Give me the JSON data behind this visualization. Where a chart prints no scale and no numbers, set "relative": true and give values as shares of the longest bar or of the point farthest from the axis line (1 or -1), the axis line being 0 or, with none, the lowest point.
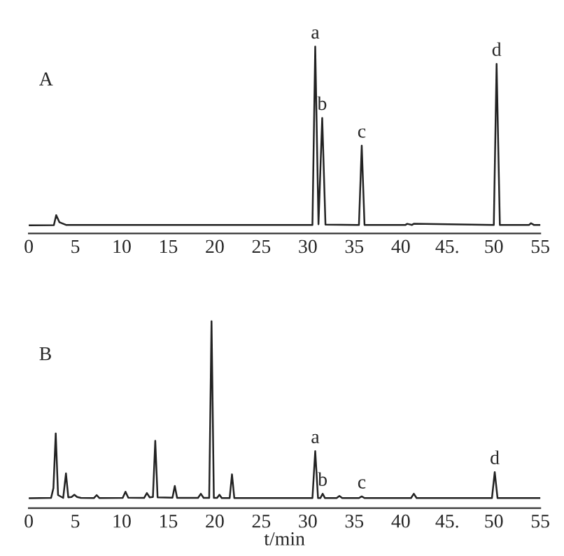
{
  "chart_data": [
    {
      "type": "line",
      "title": "A",
      "relative": true,
      "tick_labels": "x",
      "grid": false,
      "legend": false,
      "marker": "none",
      "line_style": "solid",
      "x": [
        0,
        2.7,
        2.95,
        3.3,
        4,
        30.5,
        30.8,
        31.15,
        31.55,
        31.9,
        35.5,
        35.8,
        36.1,
        40.5,
        40.7,
        41.2,
        41.4,
        50.0,
        50.3,
        50.65,
        53.8,
        54,
        54.3,
        55
      ],
      "series": [
        {
          "color": "#222222",
          "values": [
            0.044,
            0.045,
            0.098,
            0.06,
            0.046,
            0.046,
            1.0,
            0.05,
            0.618,
            0.048,
            0.046,
            0.47,
            0.046,
            0.046,
            0.052,
            0.046,
            0.052,
            0.046,
            0.907,
            0.046,
            0.046,
            0.055,
            0.046,
            0.046
          ]
        }
      ],
      "xlim": [
        0,
        55
      ],
      "xticks": [
        0,
        5,
        10,
        15,
        20,
        25,
        30,
        35,
        40,
        {
          "value": 45,
          "label": "45."
        },
        50,
        55
      ],
      "annotations": [
        {
          "text": "a",
          "x": 30.8,
          "y": 1.0
        },
        {
          "text": "b",
          "x": 31.55,
          "y": 0.618
        },
        {
          "text": "c",
          "x": 35.8,
          "y": 0.47
        },
        {
          "text": "d",
          "x": 50.3,
          "y": 0.907
        }
      ]
    },
    {
      "type": "line",
      "title": "B",
      "relative": true,
      "tick_labels": "x",
      "grid": false,
      "legend": false,
      "marker": "none",
      "line_style": "solid",
      "xlabel": "t/min",
      "x": [
        0,
        2.4,
        2.65,
        2.9,
        3.15,
        3.7,
        4.0,
        4.25,
        4.6,
        4.9,
        5.2,
        5.6,
        7.0,
        7.3,
        7.6,
        10.1,
        10.4,
        10.7,
        12.4,
        12.7,
        13.0,
        13.35,
        13.6,
        13.85,
        15.45,
        15.7,
        15.95,
        18.2,
        18.5,
        18.8,
        19.4,
        19.65,
        19.9,
        20.25,
        20.5,
        20.75,
        21.6,
        21.85,
        22.1,
        30.5,
        30.8,
        31.1,
        31.35,
        31.6,
        31.85,
        33.1,
        33.4,
        33.7,
        35.5,
        35.8,
        36.1,
        41.1,
        41.4,
        41.7,
        49.8,
        50.1,
        50.4,
        55
      ],
      "series": [
        {
          "color": "#222222",
          "values": [
            0.053,
            0.055,
            0.107,
            0.4,
            0.07,
            0.055,
            0.186,
            0.058,
            0.06,
            0.072,
            0.06,
            0.055,
            0.054,
            0.07,
            0.054,
            0.055,
            0.088,
            0.056,
            0.055,
            0.081,
            0.058,
            0.06,
            0.36,
            0.058,
            0.056,
            0.119,
            0.055,
            0.055,
            0.077,
            0.055,
            0.055,
            1.0,
            0.055,
            0.055,
            0.072,
            0.054,
            0.054,
            0.181,
            0.054,
            0.054,
            0.305,
            0.054,
            0.054,
            0.077,
            0.054,
            0.054,
            0.065,
            0.054,
            0.054,
            0.063,
            0.054,
            0.054,
            0.077,
            0.054,
            0.054,
            0.193,
            0.054,
            0.054
          ]
        }
      ],
      "xlim": [
        0,
        55
      ],
      "xticks": [
        0,
        5,
        10,
        15,
        20,
        25,
        30,
        35,
        40,
        {
          "value": 45,
          "label": "45."
        },
        50,
        55
      ],
      "annotations": [
        {
          "text": "a",
          "x": 30.8,
          "y": 0.305
        },
        {
          "text": "b",
          "x": 31.6,
          "y": 0.077
        },
        {
          "text": "c",
          "x": 35.8,
          "y": 0.063
        },
        {
          "text": "d",
          "x": 50.1,
          "y": 0.193
        }
      ]
    }
  ]
}
